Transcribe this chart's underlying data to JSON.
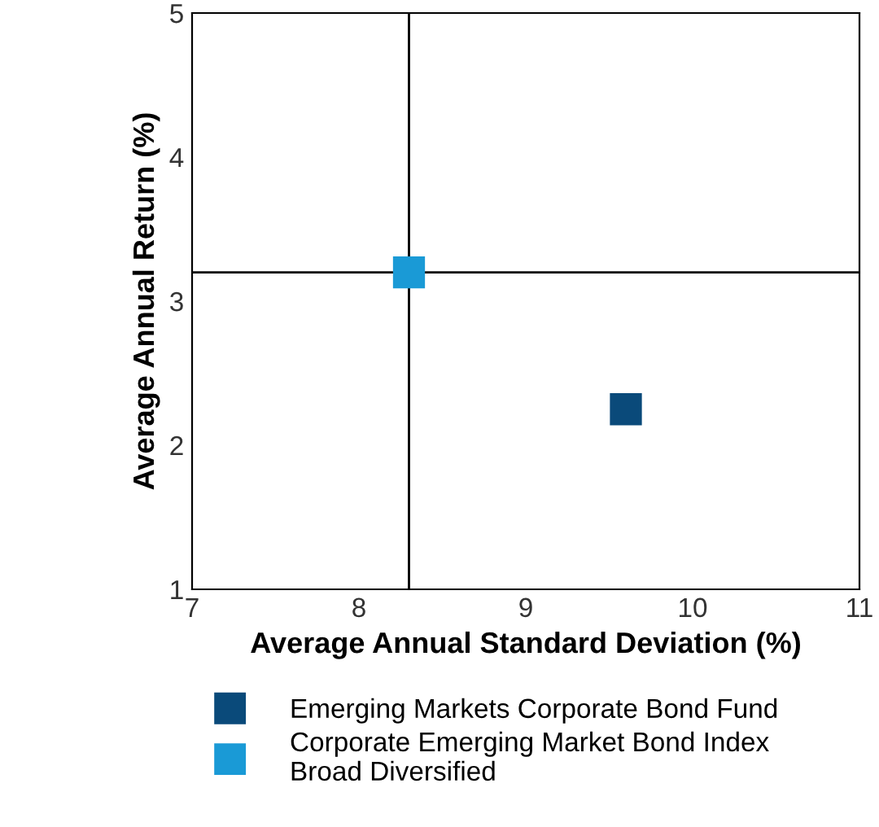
{
  "chart_data": {
    "type": "scatter",
    "xlabel": "Average Annual Standard Deviation (%)",
    "ylabel": "Average Annual Return (%)",
    "series": [
      {
        "name": "Emerging Markets Corporate Bond Fund",
        "color": "#0a4a7a",
        "x": [
          9.6
        ],
        "values": [
          2.25
        ]
      },
      {
        "name": "Corporate Emerging Market Bond Index Broad Diversified",
        "color": "#1a9ad6",
        "x": [
          8.3
        ],
        "values": [
          3.2
        ]
      }
    ],
    "ref_lines": [
      {
        "axis": "x",
        "value": 8.3,
        "color": "#000000"
      },
      {
        "axis": "y",
        "value": 3.2,
        "color": "#000000"
      }
    ],
    "xlim": [
      7,
      11
    ],
    "ylim": [
      1,
      5
    ],
    "xticks": [
      7,
      8,
      9,
      10,
      11
    ],
    "yticks": [
      1,
      2,
      3,
      4,
      5
    ],
    "marker": "square",
    "grid": false,
    "legend": "bottom"
  }
}
